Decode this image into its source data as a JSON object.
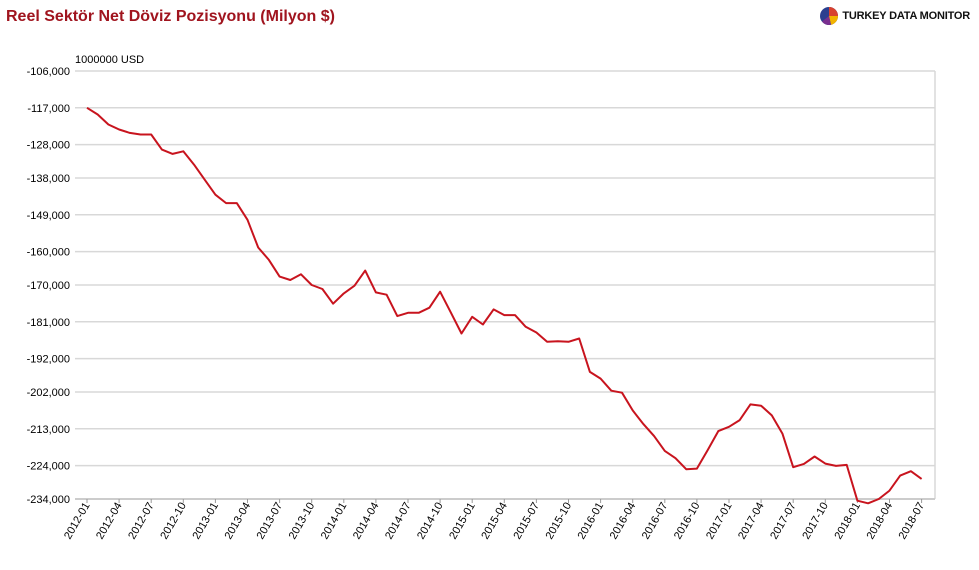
{
  "title": "Reel Sektör Net Döviz Pozisyonu (Milyon $)",
  "brand": {
    "name": "TURKEY DATA MONITOR",
    "logo_icon": "pie-chart-logo-icon"
  },
  "colors": {
    "title": "#a0141e",
    "line": "#c8141e",
    "grid": "#d8d8d8"
  },
  "chart_data": {
    "type": "line",
    "title": "Reel Sektör Net Döviz Pozisyonu (Milyon $)",
    "unit_label": "1000000 USD",
    "ylim": [
      -234000,
      -106000
    ],
    "y_ticks": [
      -106000,
      -117000,
      -128000,
      -138000,
      -149000,
      -160000,
      -170000,
      -181000,
      -192000,
      -202000,
      -213000,
      -224000,
      -234000
    ],
    "y_tick_labels": [
      "-106,000",
      "-117,000",
      "-128,000",
      "-138,000",
      "-149,000",
      "-160,000",
      "-170,000",
      "-181,000",
      "-192,000",
      "-202,000",
      "-213,000",
      "-224,000",
      "-234,000"
    ],
    "x_tick_labels": [
      "2012-01",
      "2012-04",
      "2012-07",
      "2012-10",
      "2013-01",
      "2013-04",
      "2013-07",
      "2013-10",
      "2014-01",
      "2014-04",
      "2014-07",
      "2014-10",
      "2015-01",
      "2015-04",
      "2015-07",
      "2015-10",
      "2016-01",
      "2016-04",
      "2016-07",
      "2016-10",
      "2017-01",
      "2017-04",
      "2017-07",
      "2017-10",
      "2018-01",
      "2018-04",
      "2018-07"
    ],
    "grid": true,
    "series": [
      {
        "x": [
          "2012-01",
          "2012-02",
          "2012-03",
          "2012-04",
          "2012-05",
          "2012-06",
          "2012-07",
          "2012-08",
          "2012-09",
          "2012-10",
          "2012-11",
          "2012-12",
          "2013-01",
          "2013-02",
          "2013-03",
          "2013-04",
          "2013-05",
          "2013-06",
          "2013-07",
          "2013-08",
          "2013-09",
          "2013-10",
          "2013-11",
          "2013-12",
          "2014-01",
          "2014-02",
          "2014-03",
          "2014-04",
          "2014-05",
          "2014-06",
          "2014-07",
          "2014-08",
          "2014-09",
          "2014-10",
          "2014-11",
          "2014-12",
          "2015-01",
          "2015-02",
          "2015-03",
          "2015-04",
          "2015-05",
          "2015-06",
          "2015-07",
          "2015-08",
          "2015-09",
          "2015-10",
          "2015-11",
          "2015-12",
          "2016-01",
          "2016-02",
          "2016-03",
          "2016-04",
          "2016-05",
          "2016-06",
          "2016-07",
          "2016-08",
          "2016-09",
          "2016-10",
          "2016-11",
          "2016-12",
          "2017-01",
          "2017-02",
          "2017-03",
          "2017-04",
          "2017-05",
          "2017-06",
          "2017-07",
          "2017-08",
          "2017-09",
          "2017-10",
          "2017-11",
          "2017-12",
          "2018-01",
          "2018-02",
          "2018-03",
          "2018-04",
          "2018-05",
          "2018-06",
          "2018-07"
        ],
        "values": [
          -117000,
          -119000,
          -122000,
          -123500,
          -124500,
          -125000,
          -125000,
          -129500,
          -130800,
          -130000,
          -134000,
          -138500,
          -143000,
          -145500,
          -145500,
          -150500,
          -158800,
          -162500,
          -167500,
          -168500,
          -166800,
          -170000,
          -171200,
          -175600,
          -172500,
          -170200,
          -165700,
          -172200,
          -172900,
          -179300,
          -178300,
          -178300,
          -176800,
          -172000,
          -178200,
          -184500,
          -179500,
          -181800,
          -177300,
          -179000,
          -179000,
          -182500,
          -184200,
          -187000,
          -186800,
          -187000,
          -186000,
          -196000,
          -198000,
          -201600,
          -202200,
          -207500,
          -211600,
          -215200,
          -219600,
          -221800,
          -225100,
          -224900,
          -219400,
          -213700,
          -212400,
          -210400,
          -205700,
          -206100,
          -209000,
          -214500,
          -224500,
          -223500,
          -221300,
          -223400,
          -224100,
          -223800,
          -234500,
          -235300,
          -234000,
          -231500,
          -227000,
          -225700,
          -228000
        ]
      }
    ]
  }
}
